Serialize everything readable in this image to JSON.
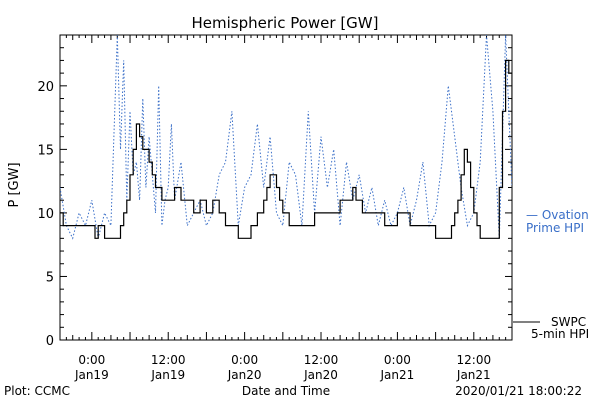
{
  "chart_data": {
    "type": "line",
    "title": "Hemispheric Power [GW]",
    "ylabel": "P [GW]",
    "xlabel": "Date and Time",
    "ylim": [
      0,
      24
    ],
    "xlim": [
      "2020-01-18T19:00",
      "2020-01-21T18:00"
    ],
    "yticks": [
      0,
      5,
      10,
      15,
      20
    ],
    "xticks": [
      {
        "time": "2020-01-19T00:00",
        "label_time": "0:00",
        "label_date": "Jan19"
      },
      {
        "time": "2020-01-19T12:00",
        "label_time": "12:00",
        "label_date": "Jan19"
      },
      {
        "time": "2020-01-20T00:00",
        "label_time": "0:00",
        "label_date": "Jan20"
      },
      {
        "time": "2020-01-20T12:00",
        "label_time": "12:00",
        "label_date": "Jan20"
      },
      {
        "time": "2020-01-21T00:00",
        "label_time": "0:00",
        "label_date": "Jan21"
      },
      {
        "time": "2020-01-21T12:00",
        "label_time": "12:00",
        "label_date": "Jan21"
      }
    ],
    "grid": false,
    "legend_placement": "right",
    "series": [
      {
        "name": "SWPC 5-min HPI",
        "color": "#000000",
        "style": "solid",
        "x": [
          "2020-01-18T19:00",
          "2020-01-18T19:30",
          "2020-01-18T20:00",
          "2020-01-19T00:00",
          "2020-01-19T00:30",
          "2020-01-19T01:00",
          "2020-01-19T02:00",
          "2020-01-19T03:00",
          "2020-01-19T04:00",
          "2020-01-19T04:30",
          "2020-01-19T05:00",
          "2020-01-19T05:30",
          "2020-01-19T06:00",
          "2020-01-19T06:30",
          "2020-01-19T07:00",
          "2020-01-19T07:30",
          "2020-01-19T08:00",
          "2020-01-19T08:30",
          "2020-01-19T09:00",
          "2020-01-19T09:30",
          "2020-01-19T10:00",
          "2020-01-19T10:30",
          "2020-01-19T11:00",
          "2020-01-19T11:30",
          "2020-01-19T12:00",
          "2020-01-19T13:00",
          "2020-01-19T14:00",
          "2020-01-19T15:00",
          "2020-01-19T16:00",
          "2020-01-19T17:00",
          "2020-01-19T18:00",
          "2020-01-19T19:00",
          "2020-01-19T20:00",
          "2020-01-19T21:00",
          "2020-01-19T22:00",
          "2020-01-19T23:00",
          "2020-01-20T00:00",
          "2020-01-20T01:00",
          "2020-01-20T02:00",
          "2020-01-20T02:30",
          "2020-01-20T03:00",
          "2020-01-20T03:30",
          "2020-01-20T04:00",
          "2020-01-20T04:30",
          "2020-01-20T05:00",
          "2020-01-20T05:30",
          "2020-01-20T06:00",
          "2020-01-20T06:30",
          "2020-01-20T07:00",
          "2020-01-20T07:30",
          "2020-01-20T08:00",
          "2020-01-20T09:00",
          "2020-01-20T10:00",
          "2020-01-20T11:00",
          "2020-01-20T12:00",
          "2020-01-20T13:00",
          "2020-01-20T14:00",
          "2020-01-20T15:00",
          "2020-01-20T16:00",
          "2020-01-20T17:00",
          "2020-01-20T17:30",
          "2020-01-20T18:00",
          "2020-01-20T18:30",
          "2020-01-20T19:00",
          "2020-01-20T20:00",
          "2020-01-20T21:00",
          "2020-01-20T22:00",
          "2020-01-20T23:00",
          "2020-01-21T00:00",
          "2020-01-21T01:00",
          "2020-01-21T02:00",
          "2020-01-21T03:00",
          "2020-01-21T04:00",
          "2020-01-21T05:00",
          "2020-01-21T06:00",
          "2020-01-21T07:00",
          "2020-01-21T08:00",
          "2020-01-21T08:30",
          "2020-01-21T09:00",
          "2020-01-21T09:30",
          "2020-01-21T10:00",
          "2020-01-21T10:30",
          "2020-01-21T11:00",
          "2020-01-21T11:30",
          "2020-01-21T12:00",
          "2020-01-21T12:30",
          "2020-01-21T13:00",
          "2020-01-21T14:00",
          "2020-01-21T15:00",
          "2020-01-21T16:00",
          "2020-01-21T16:30",
          "2020-01-21T17:00",
          "2020-01-21T17:30",
          "2020-01-21T18:00"
        ],
        "y": [
          10,
          9,
          9,
          9,
          8,
          9,
          8,
          8,
          8,
          9,
          10,
          11,
          13,
          15,
          17,
          16,
          15,
          15,
          14,
          13,
          12,
          12,
          11,
          11,
          11,
          12,
          11,
          11,
          10,
          11,
          10,
          11,
          10,
          9,
          9,
          8,
          8,
          9,
          10,
          10,
          11,
          12,
          13,
          13,
          12,
          11,
          10,
          10,
          9,
          9,
          9,
          9,
          9,
          10,
          10,
          10,
          10,
          11,
          11,
          12,
          11,
          11,
          10,
          10,
          10,
          10,
          9,
          9,
          10,
          10,
          9,
          9,
          9,
          9,
          8,
          8,
          8,
          9,
          10,
          11,
          13,
          15,
          14,
          12,
          10,
          9,
          8,
          8,
          8,
          12,
          18,
          22,
          21,
          16
        ]
      },
      {
        "name": "Ovation Prime HPI",
        "color": "#3a6fc8",
        "style": "dotted",
        "x": [
          "2020-01-18T19:00",
          "2020-01-18T20:00",
          "2020-01-18T21:00",
          "2020-01-18T22:00",
          "2020-01-18T23:00",
          "2020-01-19T00:00",
          "2020-01-19T01:00",
          "2020-01-19T02:00",
          "2020-01-19T03:00",
          "2020-01-19T04:00",
          "2020-01-19T04:30",
          "2020-01-19T05:00",
          "2020-01-19T05:30",
          "2020-01-19T06:00",
          "2020-01-19T06:30",
          "2020-01-19T07:00",
          "2020-01-19T07:30",
          "2020-01-19T08:00",
          "2020-01-19T08:30",
          "2020-01-19T09:00",
          "2020-01-19T09:30",
          "2020-01-19T10:00",
          "2020-01-19T10:30",
          "2020-01-19T11:00",
          "2020-01-19T11:30",
          "2020-01-19T12:00",
          "2020-01-19T12:30",
          "2020-01-19T13:00",
          "2020-01-19T14:00",
          "2020-01-19T15:00",
          "2020-01-19T16:00",
          "2020-01-19T17:00",
          "2020-01-19T18:00",
          "2020-01-19T19:00",
          "2020-01-19T20:00",
          "2020-01-19T21:00",
          "2020-01-19T22:00",
          "2020-01-19T23:00",
          "2020-01-20T00:00",
          "2020-01-20T01:00",
          "2020-01-20T02:00",
          "2020-01-20T03:00",
          "2020-01-20T04:00",
          "2020-01-20T05:00",
          "2020-01-20T06:00",
          "2020-01-20T07:00",
          "2020-01-20T08:00",
          "2020-01-20T09:00",
          "2020-01-20T10:00",
          "2020-01-20T11:00",
          "2020-01-20T12:00",
          "2020-01-20T13:00",
          "2020-01-20T14:00",
          "2020-01-20T15:00",
          "2020-01-20T16:00",
          "2020-01-20T17:00",
          "2020-01-20T18:00",
          "2020-01-20T19:00",
          "2020-01-20T20:00",
          "2020-01-20T21:00",
          "2020-01-20T22:00",
          "2020-01-20T23:00",
          "2020-01-21T00:00",
          "2020-01-21T01:00",
          "2020-01-21T02:00",
          "2020-01-21T03:00",
          "2020-01-21T04:00",
          "2020-01-21T05:00",
          "2020-01-21T06:00",
          "2020-01-21T07:00",
          "2020-01-21T08:00",
          "2020-01-21T09:00",
          "2020-01-21T10:00",
          "2020-01-21T11:00",
          "2020-01-21T12:00",
          "2020-01-21T13:00",
          "2020-01-21T14:00",
          "2020-01-21T15:00",
          "2020-01-21T16:00",
          "2020-01-21T17:00",
          "2020-01-21T18:00"
        ],
        "y": [
          12,
          9,
          8,
          10,
          9,
          11,
          8,
          10,
          9,
          24,
          15,
          22,
          11,
          18,
          13,
          14,
          11,
          19,
          12,
          16,
          13,
          10,
          20,
          9,
          11,
          12,
          17,
          11,
          14,
          9,
          10,
          11,
          9,
          10,
          13,
          14,
          18,
          9,
          12,
          13,
          17,
          12,
          16,
          10,
          9,
          14,
          13,
          9,
          18,
          10,
          16,
          12,
          15,
          9,
          14,
          11,
          13,
          10,
          12,
          9,
          11,
          9,
          10,
          12,
          9,
          11,
          14,
          9,
          10,
          14,
          20,
          16,
          12,
          9,
          10,
          14,
          24,
          18,
          8,
          24,
          12
        ]
      }
    ]
  },
  "legend": {
    "ovation_line1": "— Ovation",
    "ovation_line2": "Prime HPI",
    "swpc_line1": "SWPC",
    "swpc_line2": "5-min HPI"
  },
  "footer": {
    "left": "Plot: CCMC",
    "center": "Date and Time",
    "right": "2020/01/21 18:00:22"
  }
}
